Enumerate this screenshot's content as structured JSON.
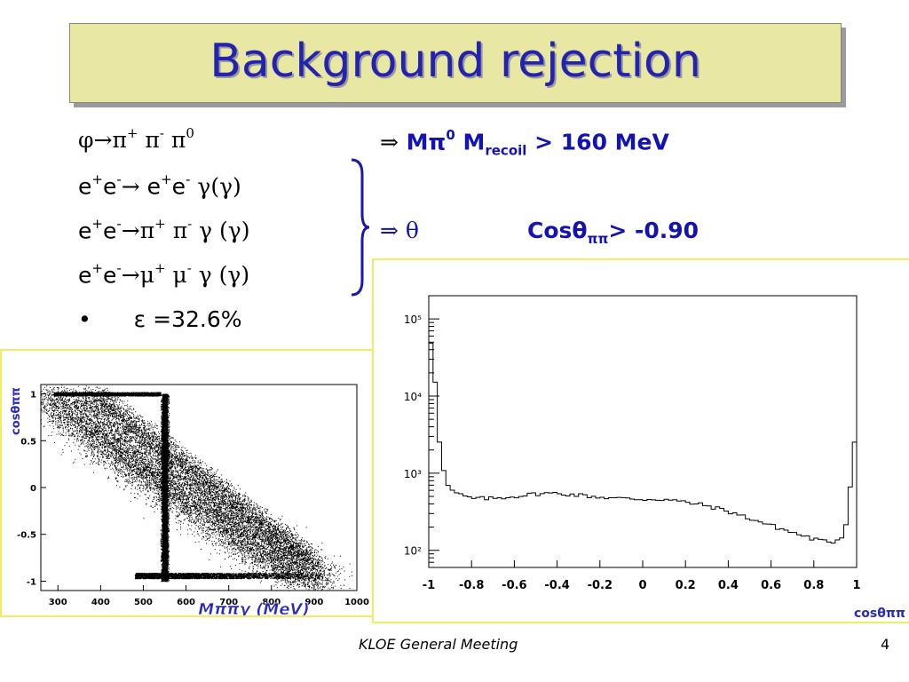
{
  "title": "Background rejection",
  "channels": [
    {
      "label": "φ→π⁺ π⁻ π⁰"
    },
    {
      "label": "e⁺e⁻→ e⁺e⁻ γ(γ)"
    },
    {
      "label": "e⁺e⁻→π⁺ π⁻ γ (γ)"
    },
    {
      "label": "e⁺e⁻→μ⁺ μ⁻ γ (γ)"
    }
  ],
  "cut1": {
    "arrow": "⇒",
    "text_a": "Mπ",
    "sup_a": "0",
    "text_b": " M",
    "sub_b": "recoil",
    "text_c": " > 160 MeV"
  },
  "cut2": {
    "arrow": "⇒ θ",
    "text_a": "Cosθ",
    "sub_a": "ππ",
    "text_b": "> -0.90"
  },
  "efficiency": {
    "bullet": "•",
    "text": "ε =32.6%"
  },
  "footer": {
    "meeting": "KLOE General Meeting",
    "page": "4"
  },
  "colors": {
    "title": "#2323b0",
    "title_bg": "#e8e8a4",
    "axis_label": "#2a2ab8",
    "panel_border": "#f4ec60"
  },
  "chart_data": [
    {
      "type": "scatter",
      "xlabel": "Mππγ (MeV)",
      "ylabel": "cosθππ",
      "xlim": [
        260,
        1000
      ],
      "ylim": [
        -1.1,
        1.1
      ],
      "xticks": [
        "300",
        "400",
        "500",
        "600",
        "700",
        "800",
        "900",
        "1000"
      ],
      "yticks": [
        "1",
        "0.5",
        "0",
        "-0.5",
        "-1"
      ],
      "grid": false,
      "features": {
        "vertical_band_x": 550,
        "diagonal_from": [
          290,
          1
        ],
        "diagonal_to": [
          900,
          -1
        ]
      }
    },
    {
      "type": "line",
      "xlabel": "cosθππ",
      "ylabel": "",
      "log_y": true,
      "xlim": [
        -1,
        1
      ],
      "ylim": [
        60,
        200000
      ],
      "xticks": [
        "-1",
        "-0.8",
        "-0.6",
        "-0.4",
        "-0.2",
        "0",
        "0.2",
        "0.4",
        "0.6",
        "0.8",
        "1"
      ],
      "yticks": [
        "10²",
        "10³",
        "10⁴",
        "10⁵"
      ],
      "grid": false,
      "series": [
        {
          "x": [
            -0.98,
            -0.96,
            -0.94,
            -0.92,
            -0.9,
            -0.85,
            -0.8,
            -0.7,
            -0.6,
            -0.5,
            -0.4,
            -0.3,
            -0.2,
            -0.1,
            0.0,
            0.1,
            0.2,
            0.3,
            0.4,
            0.5,
            0.6,
            0.7,
            0.8,
            0.85,
            0.9,
            0.93,
            0.95,
            0.97,
            0.99
          ],
          "y": [
            50000,
            5000,
            1400,
            800,
            600,
            520,
            470,
            470,
            500,
            540,
            550,
            520,
            490,
            470,
            460,
            460,
            420,
            380,
            320,
            260,
            210,
            170,
            140,
            130,
            130,
            150,
            220,
            700,
            2500
          ]
        }
      ]
    }
  ]
}
